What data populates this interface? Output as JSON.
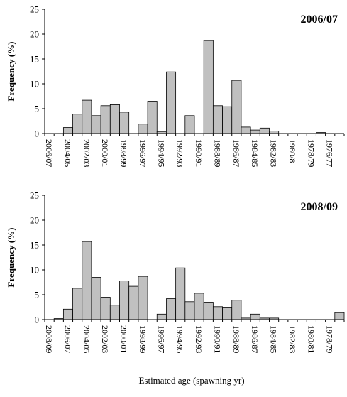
{
  "figure": {
    "xlabel": "Estimated age (spawning yr)"
  },
  "chart_data": [
    {
      "type": "bar",
      "title": "2006/07",
      "ylabel": "Frequency (%)",
      "ylim": [
        0,
        25
      ],
      "yticks": [
        0,
        5,
        10,
        15,
        20,
        25
      ],
      "tick_labels": [
        "2006/07",
        "2004/05",
        "2002/03",
        "2000/01",
        "1998/99",
        "1996/97",
        "1994/95",
        "1992/93",
        "1990/91",
        "1988/89",
        "1986/87",
        "1984/85",
        "1982/83",
        "1980/81",
        "1978/79",
        "1976/77"
      ],
      "values": [
        0,
        0,
        1.2,
        3.9,
        6.7,
        3.6,
        5.6,
        5.8,
        4.3,
        0,
        1.9,
        6.5,
        0.4,
        12.4,
        0,
        3.6,
        0,
        18.7,
        5.6,
        5.4,
        10.7,
        1.3,
        0.7,
        1.1,
        0.5,
        0,
        0,
        0,
        0,
        0.2,
        0,
        0
      ],
      "bar_color": "#c0c0c0"
    },
    {
      "type": "bar",
      "title": "2008/09",
      "ylabel": "Frequency (%)",
      "ylim": [
        0,
        25
      ],
      "yticks": [
        0,
        5,
        10,
        15,
        20,
        25
      ],
      "tick_labels": [
        "2008/09",
        "2006/07",
        "2004/05",
        "2002/03",
        "2000/01",
        "1998/99",
        "1996/97",
        "1994/95",
        "1992/93",
        "1990/91",
        "1988/89",
        "1986/87",
        "1984/85",
        "1982/83",
        "1980/81",
        "1978/79"
      ],
      "values": [
        0,
        0.2,
        2.1,
        6.3,
        15.7,
        8.5,
        4.5,
        2.9,
        7.8,
        6.7,
        8.7,
        0,
        1.1,
        4.2,
        10.4,
        3.6,
        5.3,
        3.5,
        2.6,
        2.5,
        3.9,
        0.3,
        1.1,
        0.3,
        0.3,
        0,
        0,
        0,
        0,
        0,
        0,
        1.4
      ],
      "bar_color": "#c0c0c0"
    }
  ]
}
